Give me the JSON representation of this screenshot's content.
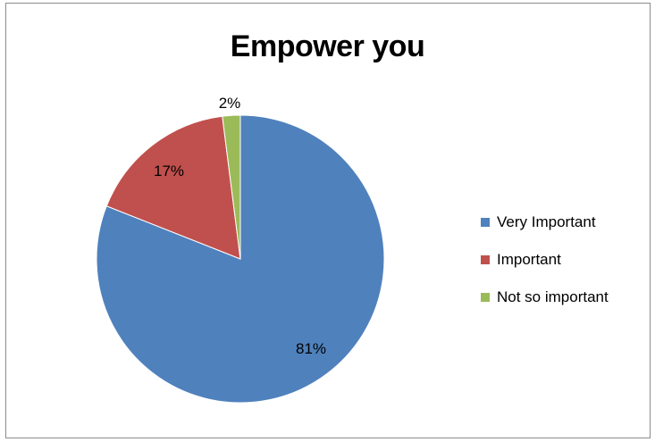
{
  "chart_data": {
    "type": "pie",
    "title": "Empower you",
    "categories": [
      "Very Important",
      "Important",
      "Not so important"
    ],
    "values": [
      81,
      17,
      2
    ],
    "data_labels": [
      "81%",
      "17%",
      "2%"
    ],
    "colors": [
      "#4f81bd",
      "#c0504d",
      "#9bbb59"
    ],
    "legend_position": "right",
    "start_angle": "12 o'clock",
    "direction": "clockwise"
  },
  "legend": {
    "items": [
      {
        "label": "Very Important",
        "color": "#4f81bd"
      },
      {
        "label": "Important",
        "color": "#c0504d"
      },
      {
        "label": "Not so important",
        "color": "#9bbb59"
      }
    ]
  }
}
